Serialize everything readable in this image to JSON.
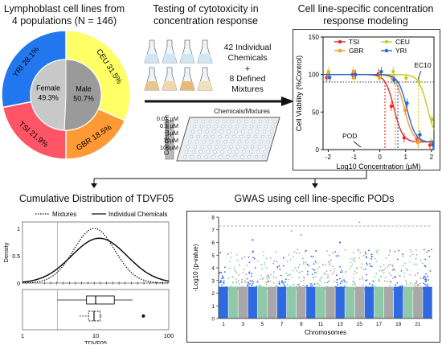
{
  "panel1": {
    "title_line1": "Lymphoblast cell lines from",
    "title_line2": "4 populations (N = 146)",
    "segments": [
      {
        "label": "CEU 31.5%",
        "value": 31.5,
        "color": "#ffff66"
      },
      {
        "label": "GBR 18.5%",
        "value": 18.5,
        "color": "#ff9933"
      },
      {
        "label": "TSI 21.9%",
        "value": 21.9,
        "color": "#ff5566"
      },
      {
        "label": "YRI 28.1%",
        "value": 28.1,
        "color": "#2277ee"
      }
    ],
    "sex": [
      {
        "label": "Male",
        "pct": "50.7%",
        "value": 50.7,
        "color": "#9a9a9a"
      },
      {
        "label": "Female",
        "pct": "49.3%",
        "value": 49.3,
        "color": "#c8c8c8"
      }
    ]
  },
  "panel2": {
    "title_line1": "Testing of cytotoxicity in",
    "title_line2": "concentration response",
    "chem_line1": "42 Individual",
    "chem_line2": "Chemicals",
    "plus": "+",
    "mix_line1": "8 Defined",
    "mix_line2": "Mixtures",
    "plate_label": "Chemicals/Mixtures",
    "concentrations": [
      "0.01 µM",
      "0.1 µM",
      "1µM",
      "10µM",
      "100µM"
    ],
    "concentration_axis": "Concentration"
  },
  "panel3": {
    "title_line1": "Cell line-specific concentration",
    "title_line2": "response modeling",
    "chart_data": {
      "type": "line",
      "xlabel": "Log10 Concentration (µM)",
      "ylabel": "Cell Viability (%Control)",
      "xlim": [
        -2.2,
        2.1
      ],
      "ylim": [
        0,
        150
      ],
      "xticks": [
        "-2",
        "-1",
        "0",
        "1",
        "2"
      ],
      "yticks": [
        "0",
        "50",
        "100",
        "150"
      ],
      "legend_position": "top",
      "series": [
        {
          "name": "TSI",
          "color": "#e8262a",
          "ec50": 0.55
        },
        {
          "name": "GBR",
          "color": "#ff9922",
          "ec50": 0.95
        },
        {
          "name": "CEU",
          "color": "#c8c820",
          "ec50": 1.85
        },
        {
          "name": "YRI",
          "color": "#2266dd",
          "ec50": 1.05
        }
      ],
      "threshold": 90,
      "annotations": [
        "EC10",
        "POD"
      ]
    }
  },
  "panel4": {
    "title": "Cumulative Distribution of TDVF05",
    "legend": [
      "Mixtures",
      "Individual Chemicals"
    ],
    "chart_data": {
      "type": "line",
      "xlabel": "TDVF05",
      "ylabel": "Density",
      "x_scale": "log",
      "xlim": [
        1,
        100
      ],
      "xticks": [
        "1",
        "10",
        "100"
      ],
      "yticks": [
        "0",
        "0.5",
        "1"
      ],
      "series": [
        {
          "name": "Mixtures",
          "style": "dotted"
        },
        {
          "name": "Individual Chemicals",
          "style": "solid"
        }
      ]
    }
  },
  "panel5": {
    "title": "GWAS using cell line-specific PODs",
    "chart_data": {
      "type": "scatter",
      "xlabel": "Chromosomes",
      "ylabel": "-Log10 (p-value)",
      "ylim": [
        0,
        8
      ],
      "yticks": [
        "0",
        "1",
        "2",
        "3",
        "4",
        "5",
        "6",
        "7",
        "8"
      ],
      "chromosome_labels": [
        "1",
        "3",
        "5",
        "7",
        "9",
        "11",
        "13",
        "15",
        "17",
        "19",
        "21"
      ],
      "colors": [
        "#2f6ae0",
        "#8fc9a8",
        "#a8a8a8"
      ],
      "threshold": 7.3
    }
  }
}
